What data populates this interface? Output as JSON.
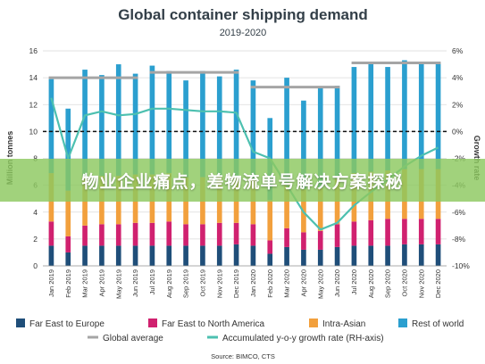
{
  "overlay": {
    "text": "物业企业痛点，差物流单号解决方案探秘"
  },
  "chart_data": {
    "type": "bar",
    "stacked": true,
    "title": "Global container shipping demand",
    "subtitle": "2019-2020",
    "ylabel": "Million tonnes",
    "y2label": "Growth rate",
    "ylim": [
      0,
      16
    ],
    "y2lim": [
      -10,
      6
    ],
    "yticks": [
      0,
      2,
      4,
      6,
      8,
      10,
      12,
      14,
      16
    ],
    "y2ticks": [
      "-10%",
      "-8%",
      "-6%",
      "-4%",
      "-2%",
      "0%",
      "2%",
      "4%",
      "6%"
    ],
    "reference_line": {
      "axis": "y2",
      "value": 0,
      "style": "dashed"
    },
    "categories": [
      "Jan 2019",
      "Feb 2019",
      "Mar 2019",
      "Apr 2019",
      "May 2019",
      "Jun 2019",
      "Jul 2019",
      "Aug 2019",
      "Sep 2019",
      "Oct 2019",
      "Nov 2019",
      "Dec 2019",
      "Jan 2020",
      "Feb 2020",
      "Mar 2020",
      "Apr 2020",
      "May 2020",
      "Jun 2020",
      "Jul 2020",
      "Aug 2020",
      "Sep 2020",
      "Oct 2020",
      "Nov 2020",
      "Dec 2020"
    ],
    "series": [
      {
        "name": "Far East to Europe",
        "color": "#1f4e79",
        "values": [
          1.5,
          1.0,
          1.5,
          1.5,
          1.5,
          1.5,
          1.5,
          1.5,
          1.5,
          1.5,
          1.5,
          1.6,
          1.5,
          0.9,
          1.4,
          1.2,
          1.2,
          1.4,
          1.5,
          1.5,
          1.5,
          1.6,
          1.6,
          1.6
        ]
      },
      {
        "name": "Far East to North America",
        "color": "#d0216f",
        "values": [
          1.8,
          1.2,
          1.5,
          1.6,
          1.6,
          1.7,
          1.7,
          1.8,
          1.6,
          1.6,
          1.7,
          1.6,
          1.6,
          1.0,
          1.4,
          1.3,
          1.4,
          1.7,
          1.8,
          1.9,
          2.0,
          1.9,
          1.9,
          1.9
        ]
      },
      {
        "name": "Intra-Asian",
        "color": "#f2a03d",
        "values": [
          3.6,
          3.4,
          3.6,
          3.6,
          3.6,
          3.6,
          3.6,
          3.6,
          3.5,
          3.5,
          3.5,
          3.5,
          3.4,
          3.0,
          3.4,
          3.2,
          3.2,
          3.4,
          3.6,
          3.6,
          3.6,
          3.7,
          3.7,
          3.7
        ]
      },
      {
        "name": "Rest of world",
        "color": "#2b9fcf",
        "values": [
          7.0,
          6.1,
          8.0,
          7.5,
          8.3,
          7.5,
          8.1,
          7.6,
          7.2,
          7.9,
          7.4,
          7.9,
          7.3,
          6.1,
          7.8,
          6.6,
          7.5,
          6.9,
          7.9,
          8.2,
          7.7,
          8.1,
          8.0,
          7.9
        ]
      }
    ],
    "global_average": {
      "name": "Global average",
      "color": "#a5a5a5",
      "segments": [
        {
          "from": 0,
          "to": 5,
          "value": 14.0
        },
        {
          "from": 6,
          "to": 11,
          "value": 14.4
        },
        {
          "from": 12,
          "to": 17,
          "value": 13.3
        },
        {
          "from": 18,
          "to": 23,
          "value": 15.1
        }
      ]
    },
    "growth_rate": {
      "name": "Accumulated y-o-y growth rate (RH-axis)",
      "color": "#4dc0b0",
      "axis": "y2",
      "values": [
        2.5,
        -2.0,
        1.2,
        1.5,
        1.2,
        1.3,
        1.7,
        1.7,
        1.6,
        1.5,
        1.5,
        1.4,
        -1.5,
        -2.0,
        -4.0,
        -6.0,
        -7.3,
        -6.8,
        -5.5,
        -4.5,
        -3.6,
        -2.6,
        -1.8,
        -1.2
      ]
    },
    "source": "Source: BIMCO, CTS"
  }
}
